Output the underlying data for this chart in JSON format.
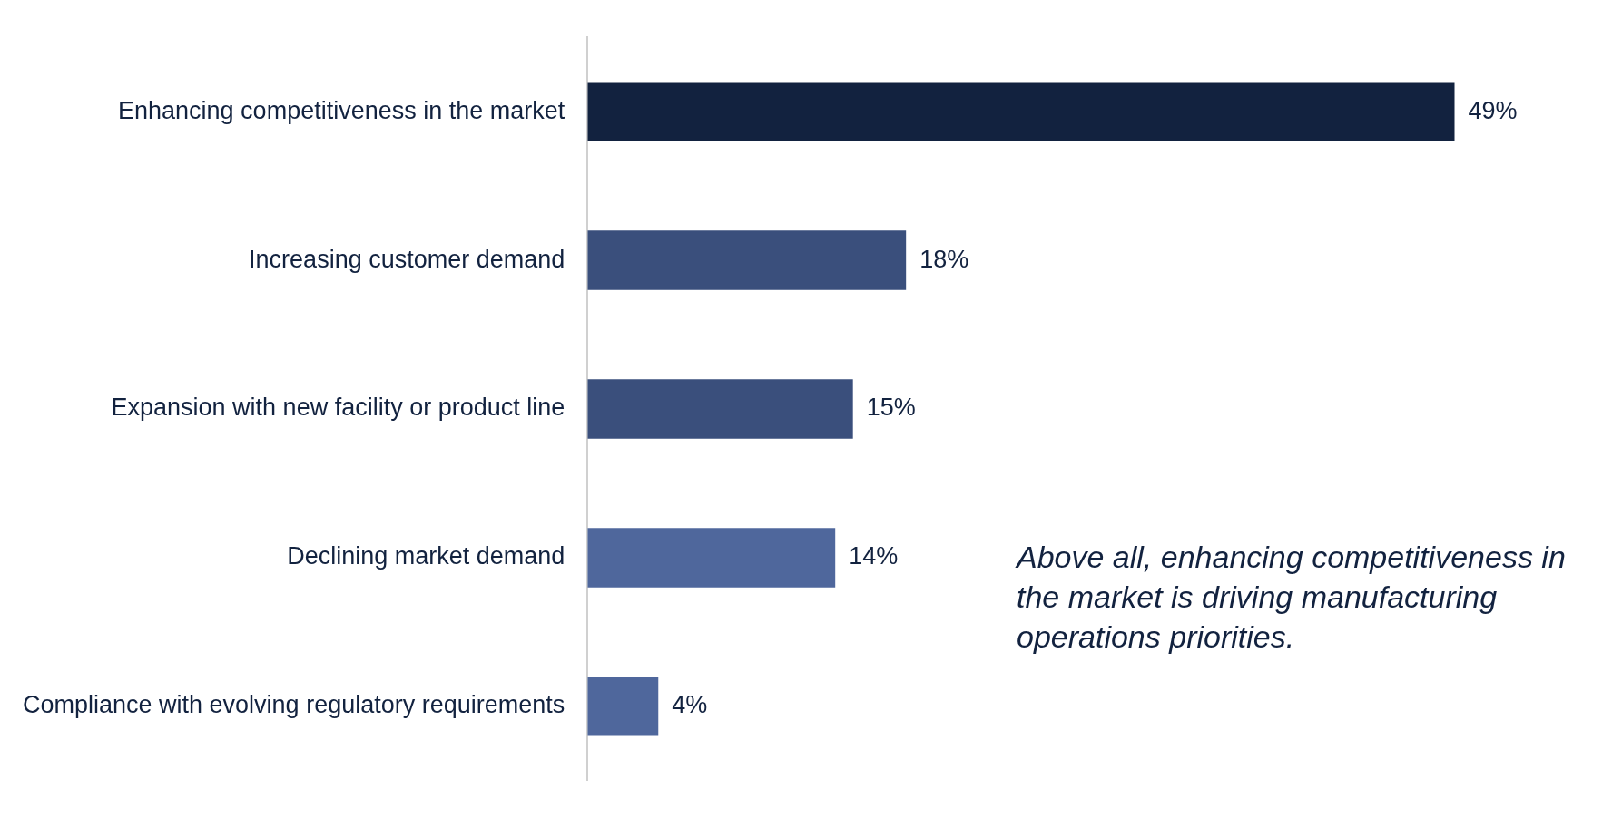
{
  "chart_data": {
    "type": "bar",
    "orientation": "horizontal",
    "categories": [
      "Enhancing competitiveness in the market",
      "Increasing customer demand",
      "Expansion with new facility or product line",
      "Declining market demand",
      "Compliance with evolving regulatory requirements"
    ],
    "values": [
      49,
      18,
      15,
      14,
      4
    ],
    "value_labels": [
      "49%",
      "18%",
      "15%",
      "14%",
      "4%"
    ],
    "colors": [
      "#12223f",
      "#3a4f7c",
      "#3a4f7c",
      "#4f679c",
      "#4f679c"
    ],
    "annotations": [
      "Above all, enhancing competitiveness in the market is driving manufacturing operations priorities."
    ]
  }
}
